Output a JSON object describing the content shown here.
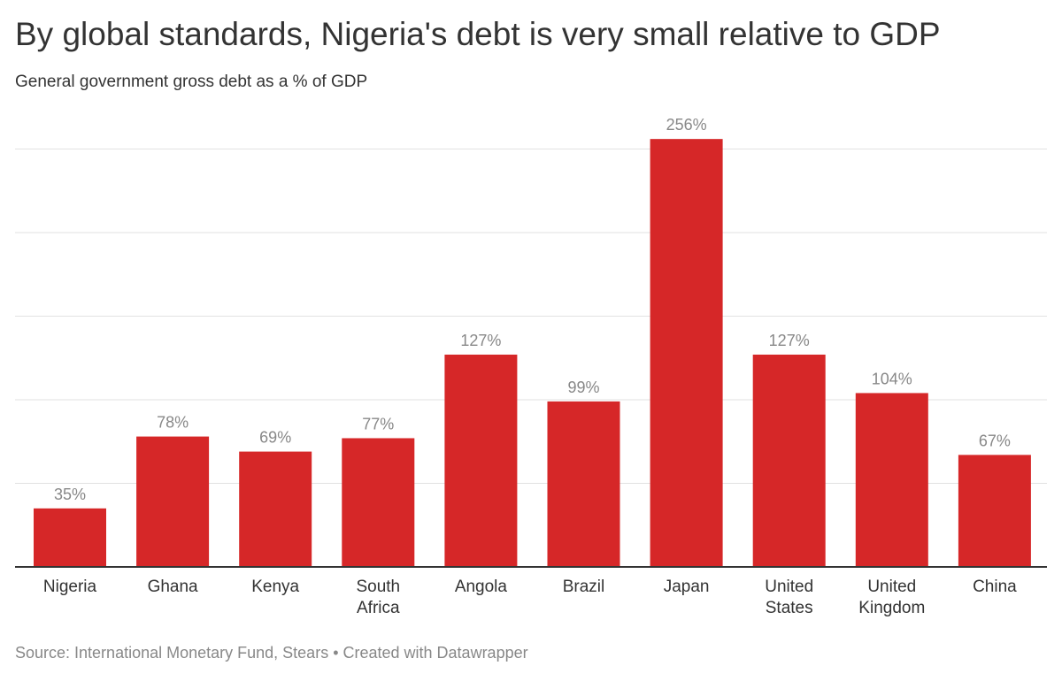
{
  "title": "By global standards, Nigeria's debt is very small relative to GDP",
  "subtitle": "General government gross debt as a % of GDP",
  "source": "Source: International Monetary Fund, Stears • Created with Datawrapper",
  "chart_data": {
    "type": "bar",
    "categories": [
      [
        "Nigeria"
      ],
      [
        "Ghana"
      ],
      [
        "Kenya"
      ],
      [
        "South",
        "Africa"
      ],
      [
        "Angola"
      ],
      [
        "Brazil"
      ],
      [
        "Japan"
      ],
      [
        "United",
        "States"
      ],
      [
        "United",
        "Kingdom"
      ],
      [
        "China"
      ]
    ],
    "values": [
      35,
      78,
      69,
      77,
      127,
      99,
      256,
      127,
      104,
      67
    ],
    "labels": [
      "35%",
      "78%",
      "69%",
      "77%",
      "127%",
      "99%",
      "256%",
      "127%",
      "104%",
      "67%"
    ],
    "ylim": [
      0,
      260
    ],
    "gridlines": [
      50,
      100,
      150,
      200,
      250
    ],
    "grid": true,
    "bar_color": "#d62728"
  }
}
